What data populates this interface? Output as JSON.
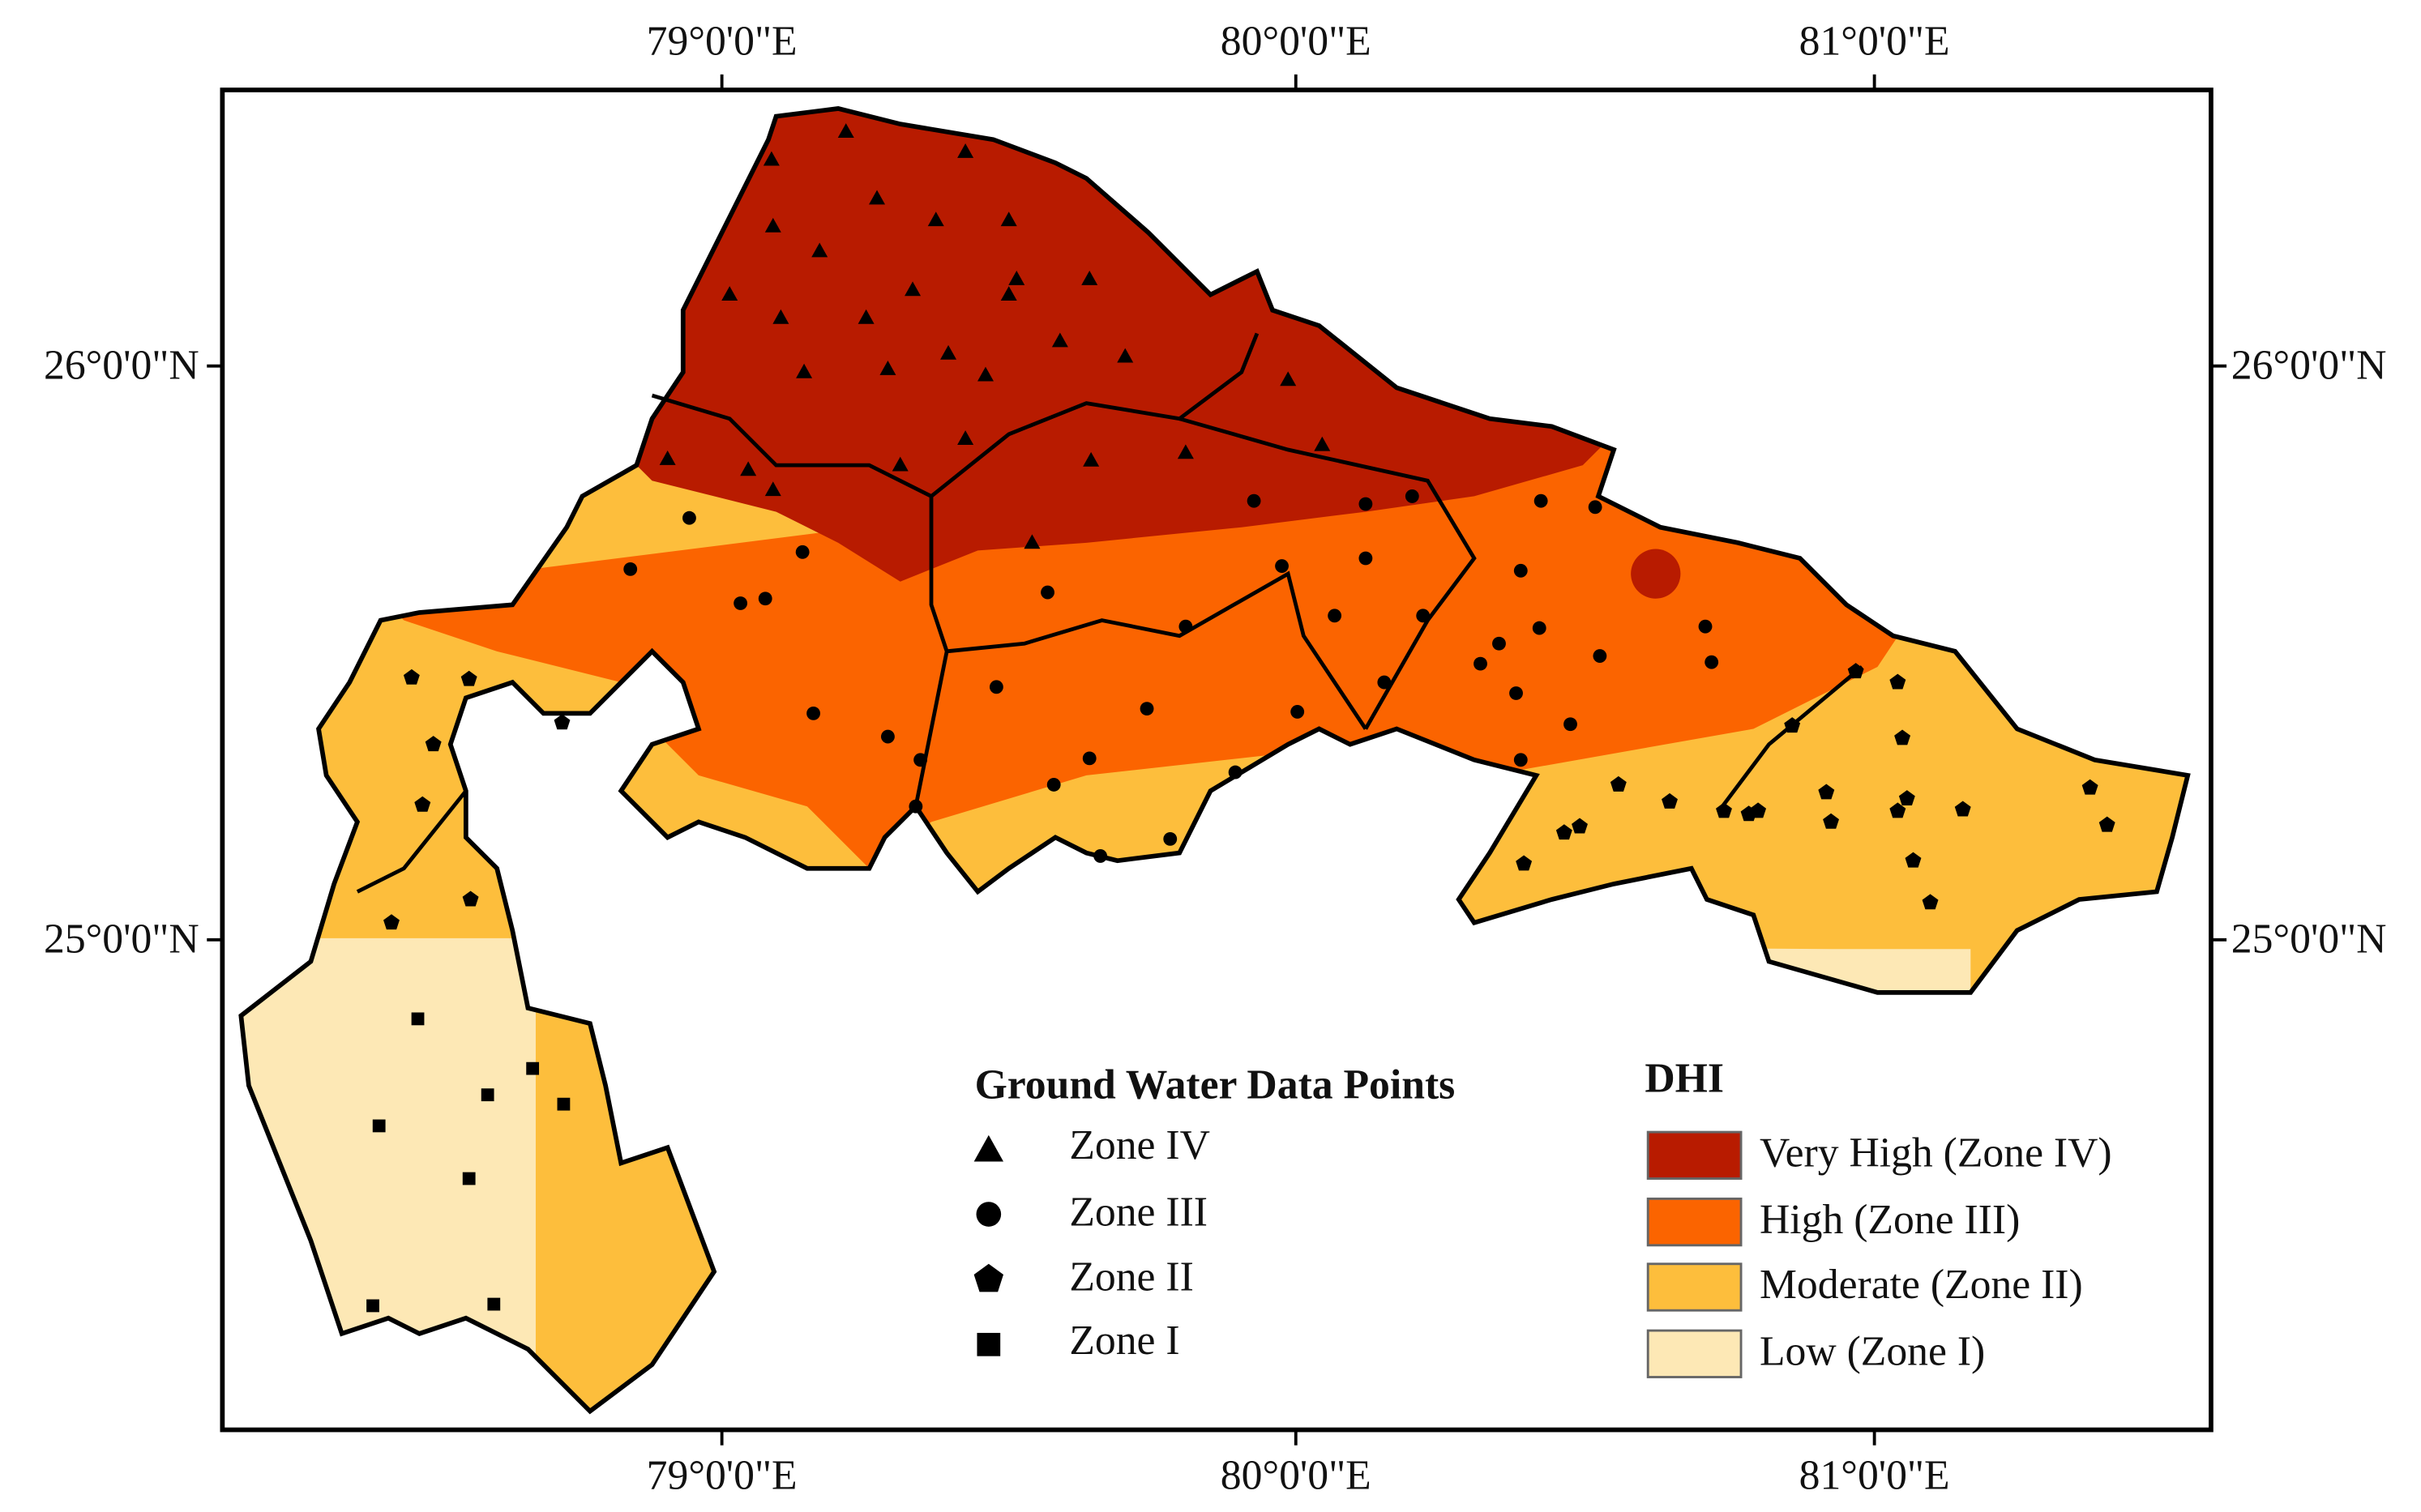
{
  "frame_labels": {
    "top": [
      "79°0'0\"E",
      "80°0'0\"E",
      "81°0'0\"E"
    ],
    "bottom": [
      "79°0'0\"E",
      "80°0'0\"E",
      "81°0'0\"E"
    ],
    "left": [
      "26°0'0\"N",
      "25°0'0\"N"
    ],
    "right": [
      "26°0'0\"N",
      "25°0'0\"N"
    ]
  },
  "points_legend": {
    "title": "Ground Water Data Points",
    "items": [
      "Zone IV",
      "Zone III",
      "Zone II",
      "Zone I"
    ]
  },
  "dhi_legend": {
    "title": "DHI",
    "items": [
      {
        "label": "Very High (Zone IV)",
        "color": "#b81b00"
      },
      {
        "label": "High  (Zone III)",
        "color": "#fb6400"
      },
      {
        "label": "Moderate  (Zone II)",
        "color": "#fdbe3c"
      },
      {
        "label": "Low  (Zone I)",
        "color": "#fde8b5"
      }
    ]
  }
}
